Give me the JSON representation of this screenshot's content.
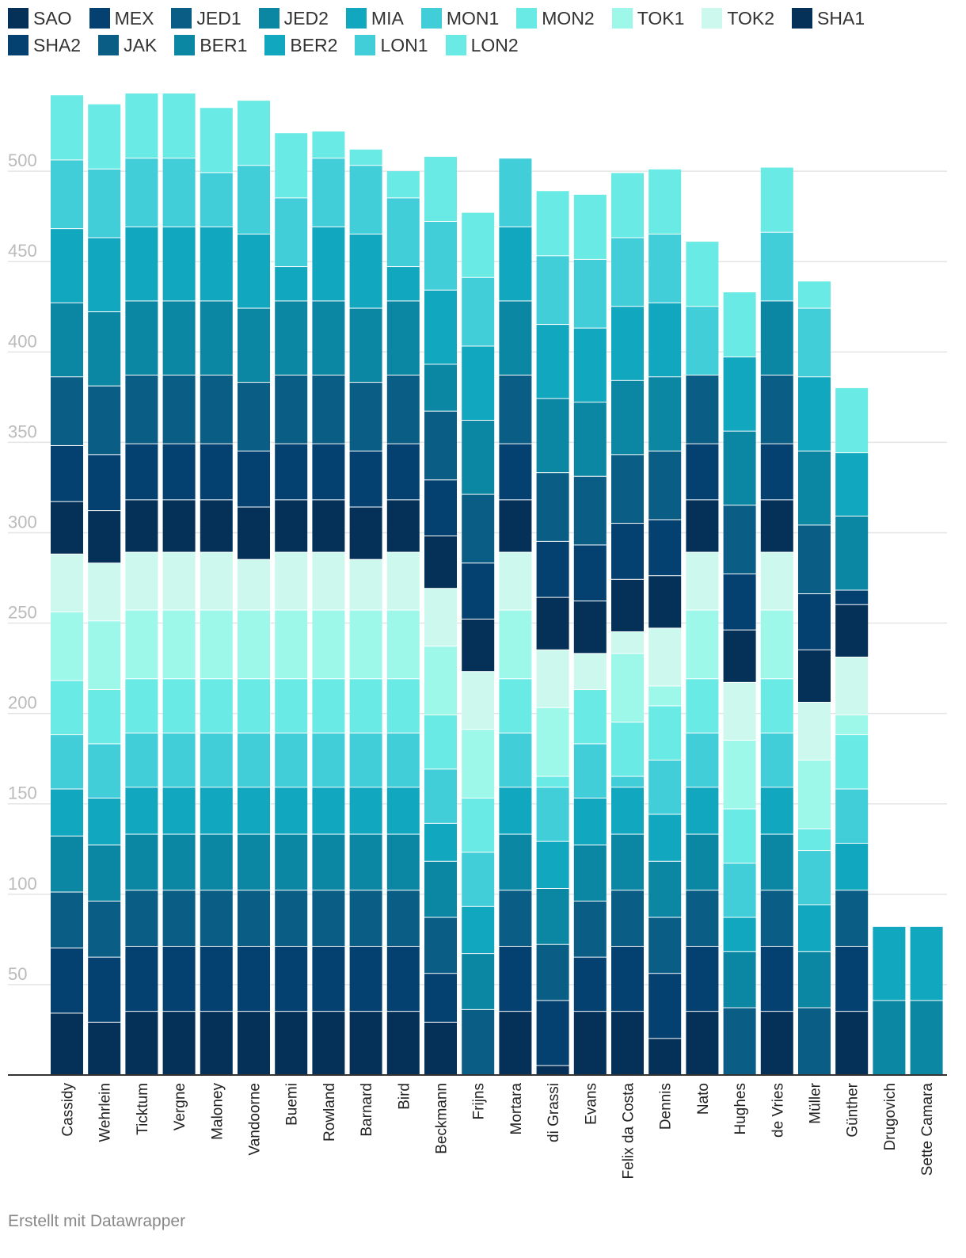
{
  "legend": [
    {
      "label": "SAO",
      "color": "#053159"
    },
    {
      "label": "MEX",
      "color": "#054170"
    },
    {
      "label": "JED1",
      "color": "#0a5e86"
    },
    {
      "label": "JED2",
      "color": "#0b86a3"
    },
    {
      "label": "MIA",
      "color": "#11a7bf"
    },
    {
      "label": "MON1",
      "color": "#41ced8"
    },
    {
      "label": "MON2",
      "color": "#6aeae4"
    },
    {
      "label": "TOK1",
      "color": "#9ef8ea"
    },
    {
      "label": "TOK2",
      "color": "#ccf8ee"
    },
    {
      "label": "SHA1",
      "color": "#053159"
    },
    {
      "label": "SHA2",
      "color": "#054170"
    },
    {
      "label": "JAK",
      "color": "#0a5e86"
    },
    {
      "label": "BER1",
      "color": "#0b86a3"
    },
    {
      "label": "BER2",
      "color": "#11a7bf"
    },
    {
      "label": "LON1",
      "color": "#41ced8"
    },
    {
      "label": "LON2",
      "color": "#6aeae4"
    }
  ],
  "chart_data": {
    "type": "bar",
    "stacked": true,
    "ylim": [
      0,
      543
    ],
    "yticks": [
      50,
      100,
      150,
      200,
      250,
      300,
      350,
      400,
      450,
      500
    ],
    "grid": true,
    "legend_position": "top",
    "categories": [
      "Cassidy",
      "Wehrlein",
      "Ticktum",
      "Vergne",
      "Maloney",
      "Vandoorne",
      "Buemi",
      "Rowland",
      "Barnard",
      "Bird",
      "Beckmann",
      "Frijns",
      "Mortara",
      "di Grassi",
      "Evans",
      "Felix da Costa",
      "Dennis",
      "Nato",
      "Hughes",
      "de Vries",
      "Müller",
      "Günther",
      "Drugovich",
      "Sette Camara"
    ],
    "series": [
      {
        "name": "SAO",
        "values": [
          34,
          29,
          35,
          35,
          35,
          35,
          35,
          35,
          35,
          35,
          29,
          0,
          35,
          5,
          35,
          35,
          20,
          35,
          0,
          35,
          0,
          35,
          0,
          0
        ]
      },
      {
        "name": "MEX",
        "values": [
          36,
          36,
          36,
          36,
          36,
          36,
          36,
          36,
          36,
          36,
          27,
          0,
          36,
          36,
          30,
          36,
          36,
          36,
          0,
          36,
          0,
          36,
          0,
          0
        ]
      },
      {
        "name": "JED1",
        "values": [
          31,
          31,
          31,
          31,
          31,
          31,
          31,
          31,
          31,
          31,
          31,
          36,
          31,
          31,
          31,
          31,
          31,
          31,
          37,
          31,
          37,
          31,
          0,
          0
        ]
      },
      {
        "name": "JED2",
        "values": [
          31,
          31,
          31,
          31,
          31,
          31,
          31,
          31,
          31,
          31,
          31,
          31,
          31,
          31,
          31,
          31,
          31,
          31,
          31,
          31,
          31,
          0,
          41,
          41
        ]
      },
      {
        "name": "MIA",
        "values": [
          26,
          26,
          26,
          26,
          26,
          26,
          26,
          26,
          26,
          26,
          21,
          26,
          26,
          26,
          26,
          26,
          26,
          26,
          19,
          26,
          26,
          26,
          41,
          41
        ]
      },
      {
        "name": "MON1",
        "values": [
          30,
          30,
          30,
          30,
          30,
          30,
          30,
          30,
          30,
          30,
          30,
          30,
          30,
          30,
          30,
          6,
          30,
          30,
          30,
          30,
          30,
          30,
          0,
          0
        ]
      },
      {
        "name": "MON2",
        "values": [
          30,
          30,
          30,
          30,
          30,
          30,
          30,
          30,
          30,
          30,
          30,
          30,
          30,
          6,
          30,
          30,
          30,
          30,
          30,
          30,
          12,
          30,
          0,
          0
        ]
      },
      {
        "name": "TOK1",
        "values": [
          38,
          38,
          38,
          38,
          38,
          38,
          38,
          38,
          38,
          38,
          38,
          38,
          38,
          38,
          0,
          38,
          11,
          38,
          38,
          38,
          38,
          11,
          0,
          0
        ]
      },
      {
        "name": "TOK2",
        "values": [
          32,
          32,
          32,
          32,
          32,
          28,
          32,
          32,
          28,
          32,
          32,
          32,
          32,
          32,
          20,
          12,
          32,
          32,
          32,
          32,
          32,
          32,
          0,
          0
        ]
      },
      {
        "name": "SHA1",
        "values": [
          29,
          29,
          29,
          29,
          29,
          29,
          29,
          29,
          29,
          29,
          29,
          29,
          29,
          29,
          29,
          29,
          29,
          29,
          29,
          29,
          29,
          29,
          0,
          0
        ]
      },
      {
        "name": "SHA2",
        "values": [
          31,
          31,
          31,
          31,
          31,
          31,
          31,
          31,
          31,
          31,
          31,
          31,
          31,
          31,
          31,
          31,
          31,
          31,
          31,
          31,
          31,
          8,
          0,
          0
        ]
      },
      {
        "name": "JAK",
        "values": [
          38,
          38,
          38,
          38,
          38,
          38,
          38,
          38,
          38,
          38,
          38,
          38,
          38,
          38,
          38,
          38,
          38,
          38,
          38,
          38,
          38,
          0,
          0,
          0
        ]
      },
      {
        "name": "BER1",
        "values": [
          41,
          41,
          41,
          41,
          41,
          41,
          41,
          41,
          41,
          41,
          26,
          41,
          41,
          41,
          41,
          41,
          41,
          0,
          41,
          41,
          41,
          41,
          0,
          0
        ]
      },
      {
        "name": "BER2",
        "values": [
          41,
          41,
          41,
          41,
          41,
          41,
          19,
          41,
          41,
          19,
          41,
          41,
          41,
          41,
          41,
          41,
          41,
          0,
          41,
          0,
          41,
          35,
          0,
          0
        ]
      },
      {
        "name": "LON1",
        "values": [
          38,
          38,
          38,
          38,
          30,
          38,
          38,
          38,
          38,
          38,
          38,
          38,
          38,
          38,
          38,
          38,
          38,
          38,
          0,
          38,
          38,
          0,
          0,
          0
        ]
      },
      {
        "name": "LON2",
        "values": [
          36,
          36,
          36,
          36,
          36,
          36,
          36,
          15,
          9,
          15,
          36,
          36,
          0,
          36,
          36,
          36,
          36,
          36,
          36,
          36,
          15,
          36,
          0,
          0
        ]
      }
    ]
  },
  "footer": "Erstellt mit Datawrapper"
}
